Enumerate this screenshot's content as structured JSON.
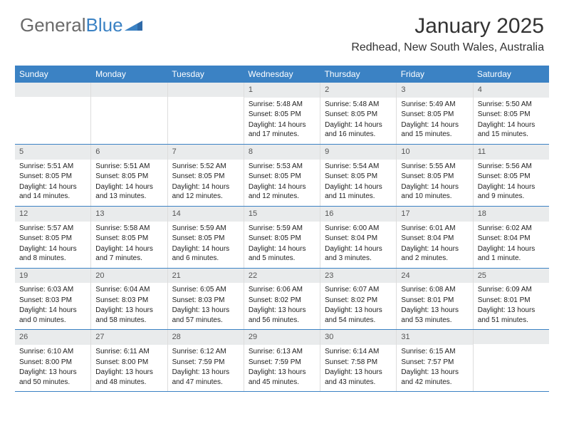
{
  "logo": {
    "text_general": "General",
    "text_blue": "Blue"
  },
  "title": "January 2025",
  "location": "Redhead, New South Wales, Australia",
  "colors": {
    "header_bg": "#3b82c4",
    "header_text": "#ffffff",
    "daynum_bg": "#e9ebec",
    "row_border": "#3b82c4",
    "logo_gray": "#6a6a6a",
    "logo_blue": "#3b82c4"
  },
  "weekdays": [
    "Sunday",
    "Monday",
    "Tuesday",
    "Wednesday",
    "Thursday",
    "Friday",
    "Saturday"
  ],
  "weeks": [
    [
      {
        "day": "",
        "sunrise": "",
        "sunset": "",
        "daylight": ""
      },
      {
        "day": "",
        "sunrise": "",
        "sunset": "",
        "daylight": ""
      },
      {
        "day": "",
        "sunrise": "",
        "sunset": "",
        "daylight": ""
      },
      {
        "day": "1",
        "sunrise": "Sunrise: 5:48 AM",
        "sunset": "Sunset: 8:05 PM",
        "daylight": "Daylight: 14 hours and 17 minutes."
      },
      {
        "day": "2",
        "sunrise": "Sunrise: 5:48 AM",
        "sunset": "Sunset: 8:05 PM",
        "daylight": "Daylight: 14 hours and 16 minutes."
      },
      {
        "day": "3",
        "sunrise": "Sunrise: 5:49 AM",
        "sunset": "Sunset: 8:05 PM",
        "daylight": "Daylight: 14 hours and 15 minutes."
      },
      {
        "day": "4",
        "sunrise": "Sunrise: 5:50 AM",
        "sunset": "Sunset: 8:05 PM",
        "daylight": "Daylight: 14 hours and 15 minutes."
      }
    ],
    [
      {
        "day": "5",
        "sunrise": "Sunrise: 5:51 AM",
        "sunset": "Sunset: 8:05 PM",
        "daylight": "Daylight: 14 hours and 14 minutes."
      },
      {
        "day": "6",
        "sunrise": "Sunrise: 5:51 AM",
        "sunset": "Sunset: 8:05 PM",
        "daylight": "Daylight: 14 hours and 13 minutes."
      },
      {
        "day": "7",
        "sunrise": "Sunrise: 5:52 AM",
        "sunset": "Sunset: 8:05 PM",
        "daylight": "Daylight: 14 hours and 12 minutes."
      },
      {
        "day": "8",
        "sunrise": "Sunrise: 5:53 AM",
        "sunset": "Sunset: 8:05 PM",
        "daylight": "Daylight: 14 hours and 12 minutes."
      },
      {
        "day": "9",
        "sunrise": "Sunrise: 5:54 AM",
        "sunset": "Sunset: 8:05 PM",
        "daylight": "Daylight: 14 hours and 11 minutes."
      },
      {
        "day": "10",
        "sunrise": "Sunrise: 5:55 AM",
        "sunset": "Sunset: 8:05 PM",
        "daylight": "Daylight: 14 hours and 10 minutes."
      },
      {
        "day": "11",
        "sunrise": "Sunrise: 5:56 AM",
        "sunset": "Sunset: 8:05 PM",
        "daylight": "Daylight: 14 hours and 9 minutes."
      }
    ],
    [
      {
        "day": "12",
        "sunrise": "Sunrise: 5:57 AM",
        "sunset": "Sunset: 8:05 PM",
        "daylight": "Daylight: 14 hours and 8 minutes."
      },
      {
        "day": "13",
        "sunrise": "Sunrise: 5:58 AM",
        "sunset": "Sunset: 8:05 PM",
        "daylight": "Daylight: 14 hours and 7 minutes."
      },
      {
        "day": "14",
        "sunrise": "Sunrise: 5:59 AM",
        "sunset": "Sunset: 8:05 PM",
        "daylight": "Daylight: 14 hours and 6 minutes."
      },
      {
        "day": "15",
        "sunrise": "Sunrise: 5:59 AM",
        "sunset": "Sunset: 8:05 PM",
        "daylight": "Daylight: 14 hours and 5 minutes."
      },
      {
        "day": "16",
        "sunrise": "Sunrise: 6:00 AM",
        "sunset": "Sunset: 8:04 PM",
        "daylight": "Daylight: 14 hours and 3 minutes."
      },
      {
        "day": "17",
        "sunrise": "Sunrise: 6:01 AM",
        "sunset": "Sunset: 8:04 PM",
        "daylight": "Daylight: 14 hours and 2 minutes."
      },
      {
        "day": "18",
        "sunrise": "Sunrise: 6:02 AM",
        "sunset": "Sunset: 8:04 PM",
        "daylight": "Daylight: 14 hours and 1 minute."
      }
    ],
    [
      {
        "day": "19",
        "sunrise": "Sunrise: 6:03 AM",
        "sunset": "Sunset: 8:03 PM",
        "daylight": "Daylight: 14 hours and 0 minutes."
      },
      {
        "day": "20",
        "sunrise": "Sunrise: 6:04 AM",
        "sunset": "Sunset: 8:03 PM",
        "daylight": "Daylight: 13 hours and 58 minutes."
      },
      {
        "day": "21",
        "sunrise": "Sunrise: 6:05 AM",
        "sunset": "Sunset: 8:03 PM",
        "daylight": "Daylight: 13 hours and 57 minutes."
      },
      {
        "day": "22",
        "sunrise": "Sunrise: 6:06 AM",
        "sunset": "Sunset: 8:02 PM",
        "daylight": "Daylight: 13 hours and 56 minutes."
      },
      {
        "day": "23",
        "sunrise": "Sunrise: 6:07 AM",
        "sunset": "Sunset: 8:02 PM",
        "daylight": "Daylight: 13 hours and 54 minutes."
      },
      {
        "day": "24",
        "sunrise": "Sunrise: 6:08 AM",
        "sunset": "Sunset: 8:01 PM",
        "daylight": "Daylight: 13 hours and 53 minutes."
      },
      {
        "day": "25",
        "sunrise": "Sunrise: 6:09 AM",
        "sunset": "Sunset: 8:01 PM",
        "daylight": "Daylight: 13 hours and 51 minutes."
      }
    ],
    [
      {
        "day": "26",
        "sunrise": "Sunrise: 6:10 AM",
        "sunset": "Sunset: 8:00 PM",
        "daylight": "Daylight: 13 hours and 50 minutes."
      },
      {
        "day": "27",
        "sunrise": "Sunrise: 6:11 AM",
        "sunset": "Sunset: 8:00 PM",
        "daylight": "Daylight: 13 hours and 48 minutes."
      },
      {
        "day": "28",
        "sunrise": "Sunrise: 6:12 AM",
        "sunset": "Sunset: 7:59 PM",
        "daylight": "Daylight: 13 hours and 47 minutes."
      },
      {
        "day": "29",
        "sunrise": "Sunrise: 6:13 AM",
        "sunset": "Sunset: 7:59 PM",
        "daylight": "Daylight: 13 hours and 45 minutes."
      },
      {
        "day": "30",
        "sunrise": "Sunrise: 6:14 AM",
        "sunset": "Sunset: 7:58 PM",
        "daylight": "Daylight: 13 hours and 43 minutes."
      },
      {
        "day": "31",
        "sunrise": "Sunrise: 6:15 AM",
        "sunset": "Sunset: 7:57 PM",
        "daylight": "Daylight: 13 hours and 42 minutes."
      },
      {
        "day": "",
        "sunrise": "",
        "sunset": "",
        "daylight": ""
      }
    ]
  ]
}
